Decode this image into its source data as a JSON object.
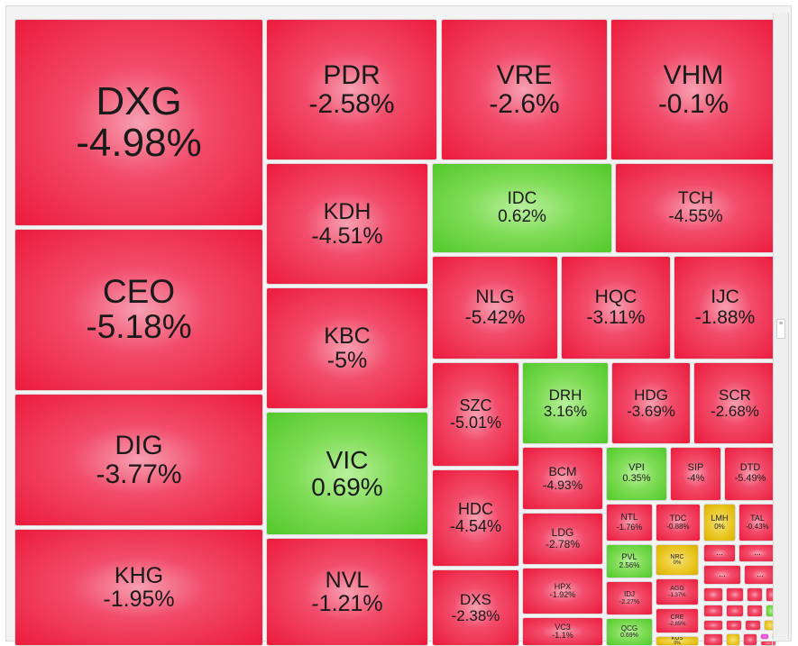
{
  "chart_data": {
    "type": "treemap",
    "color_scale": {
      "down": "#ec1b3d",
      "up": "#52c92b",
      "unchanged": "#e9c51f",
      "ceiling": "#e02bd0"
    },
    "tiles": [
      {
        "ticker": "DXG",
        "change": "-4.98%",
        "value": -4.98
      },
      {
        "ticker": "PDR",
        "change": "-2.58%",
        "value": -2.58
      },
      {
        "ticker": "VRE",
        "change": "-2.6%",
        "value": -2.6
      },
      {
        "ticker": "VHM",
        "change": "-0.1%",
        "value": -0.1
      },
      {
        "ticker": "CEO",
        "change": "-5.18%",
        "value": -5.18
      },
      {
        "ticker": "KDH",
        "change": "-4.51%",
        "value": -4.51
      },
      {
        "ticker": "IDC",
        "change": "0.62%",
        "value": 0.62
      },
      {
        "ticker": "TCH",
        "change": "-4.55%",
        "value": -4.55
      },
      {
        "ticker": "KBC",
        "change": "-5%",
        "value": -5
      },
      {
        "ticker": "NLG",
        "change": "-5.42%",
        "value": -5.42
      },
      {
        "ticker": "HQC",
        "change": "-3.11%",
        "value": -3.11
      },
      {
        "ticker": "IJC",
        "change": "-1.88%",
        "value": -1.88
      },
      {
        "ticker": "DIG",
        "change": "-3.77%",
        "value": -3.77
      },
      {
        "ticker": "VIC",
        "change": "0.69%",
        "value": 0.69
      },
      {
        "ticker": "SZC",
        "change": "-5.01%",
        "value": -5.01
      },
      {
        "ticker": "DRH",
        "change": "3.16%",
        "value": 3.16
      },
      {
        "ticker": "HDG",
        "change": "-3.69%",
        "value": -3.69
      },
      {
        "ticker": "SCR",
        "change": "-2.68%",
        "value": -2.68
      },
      {
        "ticker": "BCM",
        "change": "-4.93%",
        "value": -4.93
      },
      {
        "ticker": "VPI",
        "change": "0.35%",
        "value": 0.35
      },
      {
        "ticker": "SIP",
        "change": "-4%",
        "value": -4
      },
      {
        "ticker": "DTD",
        "change": "-5.49%",
        "value": -5.49
      },
      {
        "ticker": "HDC",
        "change": "-4.54%",
        "value": -4.54
      },
      {
        "ticker": "NTL",
        "change": "-1.76%",
        "value": -1.76
      },
      {
        "ticker": "TDC",
        "change": "-0.88%",
        "value": -0.88
      },
      {
        "ticker": "LMH",
        "change": "0%",
        "value": 0
      },
      {
        "ticker": "TAL",
        "change": "-0.43%",
        "value": -0.43
      },
      {
        "ticker": "KHG",
        "change": "-1.95%",
        "value": -1.95
      },
      {
        "ticker": "NVL",
        "change": "-1.21%",
        "value": -1.21
      },
      {
        "ticker": "LDG",
        "change": "-2.78%",
        "value": -2.78
      },
      {
        "ticker": "NRC",
        "change": "0%",
        "value": 0
      },
      {
        "ticker": "PVL",
        "change": "2.56%",
        "value": 2.56
      },
      {
        "ticker": "AGG",
        "change": "-1.37%",
        "value": -1.37
      },
      {
        "ticker": "HPX",
        "change": "-1.92%",
        "value": -1.92
      },
      {
        "ticker": "IDJ",
        "change": "-2.27%",
        "value": -2.27
      },
      {
        "ticker": "CRE",
        "change": "-2.85%",
        "value": -2.85
      },
      {
        "ticker": "DXS",
        "change": "-2.38%",
        "value": -2.38
      },
      {
        "ticker": "VC3",
        "change": "-1.1%",
        "value": -1.1
      },
      {
        "ticker": "QCG",
        "change": "0.69%",
        "value": 0.69
      },
      {
        "ticker": "KOS",
        "change": "0%",
        "value": 0
      }
    ],
    "ellipsis_label": "...",
    "small_tiles": [
      "down",
      "down",
      "down",
      "down",
      "down",
      "down",
      "down",
      "down",
      "down",
      "down",
      "down",
      "up",
      "down",
      "down",
      "down",
      "unchanged",
      "down",
      "unchanged",
      "down",
      "ceiling",
      "down",
      "down",
      "down",
      "down",
      "down",
      "down"
    ]
  },
  "scrollbar": {
    "handle_glyph": "≡"
  }
}
